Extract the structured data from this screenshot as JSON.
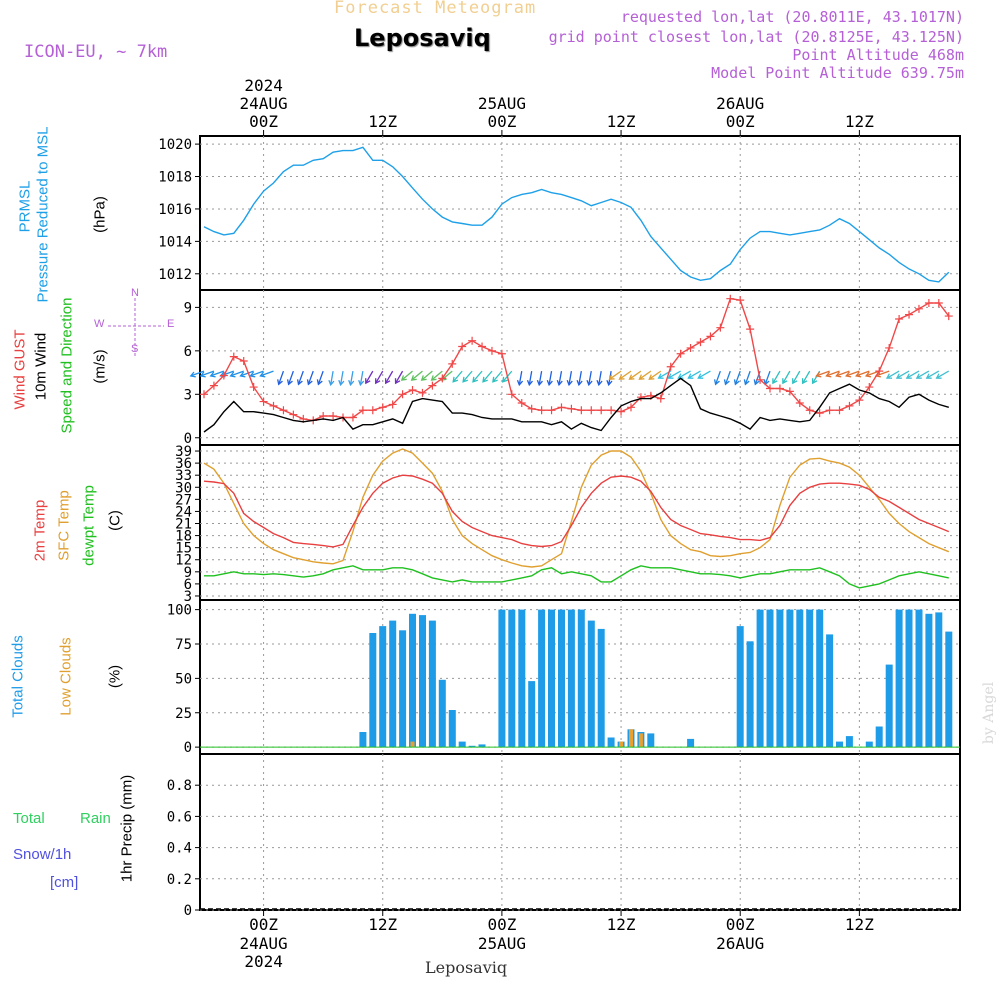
{
  "header": {
    "title": "Forecast Meteogram",
    "location": "Leposaviq",
    "model": "ICON-EU, ~ 7km",
    "meta": [
      "requested lon,lat (20.8011E, 43.1017N)",
      "grid point closest lon,lat (20.8125E, 43.125N)",
      "Point Altitude 468m",
      "Model Point Altitude 639.75m"
    ],
    "footer": "Leposaviq",
    "credit": "by Angel"
  },
  "colors": {
    "pressure": "#1ea0e8",
    "gust": "#f04848",
    "wind": "#000000",
    "temp2m": "#e84040",
    "sfc": "#e0a030",
    "dewpt": "#20c020",
    "clouds_total": "#1e9ce8",
    "clouds_low": "#e8a030",
    "rain": "#30d060",
    "snow": "#5050e0",
    "compass": "#b560d6"
  },
  "time_axis": {
    "top_year": "2024",
    "ticks": [
      {
        "h": 6,
        "top": "00Z",
        "date": "24AUG",
        "year": "2024"
      },
      {
        "h": 18,
        "top": "12Z"
      },
      {
        "h": 30,
        "top": "00Z",
        "date": "25AUG"
      },
      {
        "h": 42,
        "top": "12Z"
      },
      {
        "h": 54,
        "top": "00Z",
        "date": "26AUG"
      },
      {
        "h": 66,
        "top": "12Z"
      }
    ]
  },
  "panel_labels": {
    "pressure": [
      "PRMSL",
      "Pressure Reduced to MSL",
      "(hPa)"
    ],
    "wind": [
      "Wind GUST",
      "10m Wind",
      "Speed and Direction",
      "(m/s)"
    ],
    "compass": {
      "n": "N",
      "s": "S",
      "w": "W",
      "e": "E"
    },
    "temp": [
      "2m Temp",
      "SFC Temp",
      "dewpt Temp",
      "(C)"
    ],
    "clouds": [
      "Total Clouds",
      "Low Clouds",
      "(%)"
    ],
    "precip": [
      "Total",
      "Rain",
      "Snow/1h",
      "[cm]",
      "1hr Precip (mm)"
    ]
  },
  "chart_data": [
    {
      "type": "line",
      "title": "PRMSL Pressure Reduced to MSL",
      "ylabel": "(hPa)",
      "ylim": [
        1011,
        1020.5
      ],
      "yticks": [
        1012,
        1014,
        1016,
        1018,
        1020
      ],
      "x_hours": [
        0,
        1,
        2,
        3,
        4,
        5,
        6,
        7,
        8,
        9,
        10,
        11,
        12,
        13,
        14,
        15,
        16,
        17,
        18,
        19,
        20,
        21,
        22,
        23,
        24,
        25,
        26,
        27,
        28,
        29,
        30,
        31,
        32,
        33,
        34,
        35,
        36,
        37,
        38,
        39,
        40,
        41,
        42,
        43,
        44,
        45,
        46,
        47,
        48,
        49,
        50,
        51,
        52,
        53,
        54,
        55,
        56,
        57,
        58,
        59,
        60,
        61,
        62,
        63,
        64,
        65,
        66,
        67,
        68,
        69,
        70,
        71,
        72,
        73,
        74,
        75
      ],
      "series": [
        {
          "name": "PRMSL",
          "values": [
            1014.9,
            1014.6,
            1014.4,
            1014.5,
            1015.3,
            1016.3,
            1017.1,
            1017.6,
            1018.3,
            1018.7,
            1018.7,
            1019.0,
            1019.1,
            1019.5,
            1019.6,
            1019.6,
            1019.8,
            1019.0,
            1019.0,
            1018.6,
            1018.0,
            1017.3,
            1016.6,
            1016.0,
            1015.5,
            1015.2,
            1015.1,
            1015.0,
            1015.0,
            1015.5,
            1016.3,
            1016.7,
            1016.9,
            1017.0,
            1017.2,
            1017.0,
            1016.9,
            1016.7,
            1016.5,
            1016.2,
            1016.4,
            1016.6,
            1016.4,
            1016.1,
            1015.3,
            1014.3,
            1013.6,
            1012.9,
            1012.2,
            1011.8,
            1011.6,
            1011.7,
            1012.2,
            1012.6,
            1013.5,
            1014.2,
            1014.6,
            1014.6,
            1014.5,
            1014.4,
            1014.5,
            1014.6,
            1014.7,
            1015.0,
            1015.4,
            1015.1,
            1014.6,
            1014.1,
            1013.6,
            1013.2,
            1012.7,
            1012.3,
            1012.0,
            1011.6,
            1011.5,
            1012.1
          ]
        }
      ]
    },
    {
      "type": "line",
      "title": "Wind GUST / 10m Wind Speed and Direction",
      "ylabel": "(m/s)",
      "ylim": [
        -0.5,
        10.2
      ],
      "yticks": [
        0,
        3,
        6,
        9
      ],
      "x_hours": [
        0,
        1,
        2,
        3,
        4,
        5,
        6,
        7,
        8,
        9,
        10,
        11,
        12,
        13,
        14,
        15,
        16,
        17,
        18,
        19,
        20,
        21,
        22,
        23,
        24,
        25,
        26,
        27,
        28,
        29,
        30,
        31,
        32,
        33,
        34,
        35,
        36,
        37,
        38,
        39,
        40,
        41,
        42,
        43,
        44,
        45,
        46,
        47,
        48,
        49,
        50,
        51,
        52,
        53,
        54,
        55,
        56,
        57,
        58,
        59,
        60,
        61,
        62,
        63,
        64,
        65,
        66,
        67,
        68,
        69,
        70,
        71,
        72,
        73,
        74,
        75
      ],
      "series": [
        {
          "name": "Wind GUST",
          "values": [
            3.0,
            3.6,
            4.3,
            5.6,
            5.3,
            3.5,
            2.5,
            2.2,
            1.9,
            1.6,
            1.3,
            1.2,
            1.5,
            1.5,
            1.4,
            1.4,
            1.9,
            1.9,
            2.1,
            2.3,
            3.0,
            3.3,
            3.1,
            3.6,
            4.1,
            5.1,
            6.3,
            6.7,
            6.3,
            6.0,
            5.8,
            3.0,
            2.4,
            2.0,
            1.9,
            1.9,
            2.1,
            2.0,
            1.9,
            1.9,
            1.9,
            1.9,
            1.8,
            2.1,
            2.8,
            2.9,
            2.7,
            4.9,
            5.8,
            6.2,
            6.6,
            7.0,
            7.6,
            9.6,
            9.5,
            7.5,
            4.0,
            3.4,
            3.4,
            3.2,
            2.4,
            1.9,
            1.7,
            1.9,
            1.9,
            2.2,
            2.6,
            3.5,
            4.6,
            6.2,
            8.2,
            8.5,
            8.9,
            9.3,
            9.3,
            8.4
          ]
        },
        {
          "name": "10m Wind",
          "values": [
            0.4,
            0.9,
            1.8,
            2.5,
            1.8,
            1.8,
            1.7,
            1.6,
            1.4,
            1.2,
            1.1,
            1.2,
            1.3,
            1.2,
            1.4,
            0.6,
            0.9,
            0.9,
            1.1,
            1.3,
            1.0,
            2.5,
            2.7,
            2.6,
            2.5,
            1.7,
            1.7,
            1.6,
            1.4,
            1.3,
            1.3,
            1.3,
            1.1,
            1.1,
            1.1,
            0.9,
            1.1,
            0.6,
            1.0,
            0.7,
            0.5,
            1.4,
            2.2,
            2.5,
            2.7,
            2.7,
            3.1,
            3.6,
            4.1,
            3.6,
            2.0,
            1.7,
            1.5,
            1.3,
            1.0,
            0.6,
            1.4,
            1.2,
            1.3,
            1.2,
            1.1,
            1.2,
            2.1,
            3.1,
            3.4,
            3.7,
            3.3,
            3.1,
            2.7,
            2.5,
            2.1,
            2.8,
            3.0,
            2.6,
            2.3,
            2.1
          ]
        }
      ]
    },
    {
      "type": "line",
      "title": "2m Temp / SFC Temp / dewpt Temp",
      "ylabel": "(C)",
      "ylim": [
        2,
        40.5
      ],
      "yticks": [
        3,
        6,
        9,
        12,
        15,
        18,
        21,
        24,
        27,
        30,
        33,
        36,
        39
      ],
      "x_hours": [
        0,
        1,
        2,
        3,
        4,
        5,
        6,
        7,
        8,
        9,
        10,
        11,
        12,
        13,
        14,
        15,
        16,
        17,
        18,
        19,
        20,
        21,
        22,
        23,
        24,
        25,
        26,
        27,
        28,
        29,
        30,
        31,
        32,
        33,
        34,
        35,
        36,
        37,
        38,
        39,
        40,
        41,
        42,
        43,
        44,
        45,
        46,
        47,
        48,
        49,
        50,
        51,
        52,
        53,
        54,
        55,
        56,
        57,
        58,
        59,
        60,
        61,
        62,
        63,
        64,
        65,
        66,
        67,
        68,
        69,
        70,
        71,
        72,
        73,
        74,
        75
      ],
      "series": [
        {
          "name": "2m Temp",
          "values": [
            31.5,
            31.3,
            30.9,
            28.5,
            23.5,
            21.5,
            20.0,
            18.5,
            17.5,
            16.3,
            16.0,
            15.8,
            15.5,
            15.2,
            15.8,
            20.5,
            25.0,
            28.5,
            31.0,
            32.3,
            33.0,
            32.8,
            32.0,
            31.0,
            28.5,
            24.0,
            21.5,
            20.0,
            19.0,
            18.0,
            17.5,
            17.0,
            16.0,
            15.5,
            15.3,
            15.5,
            16.5,
            20.5,
            25.0,
            28.5,
            31.0,
            32.5,
            32.8,
            32.5,
            31.5,
            29.0,
            25.0,
            22.0,
            20.5,
            19.5,
            18.5,
            18.2,
            17.8,
            17.5,
            17.0,
            17.0,
            16.8,
            17.5,
            20.5,
            25.5,
            28.5,
            30.0,
            30.8,
            31.0,
            31.0,
            30.8,
            30.5,
            29.5,
            27.5,
            26.5,
            25.0,
            23.5,
            22.0,
            21.0,
            20.0,
            19.0
          ]
        },
        {
          "name": "SFC Temp",
          "values": [
            36.0,
            34.5,
            31.0,
            26.0,
            21.0,
            18.0,
            16.0,
            14.5,
            13.5,
            12.5,
            12.0,
            11.5,
            11.2,
            11.0,
            11.8,
            19.0,
            27.5,
            33.0,
            36.5,
            38.5,
            39.5,
            38.5,
            36.0,
            33.5,
            29.0,
            22.0,
            18.0,
            16.0,
            14.5,
            13.0,
            12.0,
            11.2,
            10.5,
            10.2,
            10.5,
            12.0,
            13.5,
            21.5,
            30.0,
            35.5,
            38.0,
            39.0,
            39.0,
            37.5,
            34.0,
            28.5,
            22.0,
            18.0,
            16.0,
            14.5,
            14.0,
            13.0,
            12.8,
            13.0,
            13.5,
            13.8,
            15.0,
            17.0,
            25.5,
            32.5,
            35.5,
            37.0,
            37.2,
            36.5,
            36.0,
            35.0,
            33.0,
            30.0,
            27.0,
            23.5,
            21.0,
            19.0,
            17.5,
            16.0,
            15.0,
            14.0
          ]
        },
        {
          "name": "dewpt Temp",
          "values": [
            8.0,
            8.0,
            8.5,
            9.0,
            8.5,
            8.5,
            8.3,
            8.5,
            8.3,
            8.0,
            7.7,
            8.0,
            8.5,
            9.5,
            10.0,
            10.5,
            9.5,
            9.5,
            9.5,
            10.0,
            10.0,
            9.5,
            8.5,
            7.5,
            7.0,
            6.5,
            7.0,
            6.5,
            6.5,
            6.5,
            6.5,
            7.0,
            7.5,
            8.0,
            9.5,
            10.0,
            8.5,
            9.0,
            8.5,
            8.0,
            6.5,
            6.5,
            8.0,
            9.5,
            10.5,
            10.0,
            10.0,
            10.0,
            9.5,
            9.0,
            8.5,
            8.5,
            8.3,
            8.0,
            7.5,
            8.0,
            8.5,
            8.5,
            9.0,
            9.5,
            9.5,
            9.5,
            10.0,
            9.0,
            8.0,
            6.0,
            5.0,
            5.5,
            6.0,
            7.0,
            8.0,
            8.5,
            9.0,
            8.5,
            8.0,
            7.5
          ]
        }
      ]
    },
    {
      "type": "bar",
      "title": "Total Clouds / Low Clouds",
      "ylabel": "(%)",
      "ylim": [
        -5,
        107
      ],
      "yticks": [
        0,
        25,
        50,
        75,
        100
      ],
      "x_hours": [
        0,
        1,
        2,
        3,
        4,
        5,
        6,
        7,
        8,
        9,
        10,
        11,
        12,
        13,
        14,
        15,
        16,
        17,
        18,
        19,
        20,
        21,
        22,
        23,
        24,
        25,
        26,
        27,
        28,
        29,
        30,
        31,
        32,
        33,
        34,
        35,
        36,
        37,
        38,
        39,
        40,
        41,
        42,
        43,
        44,
        45,
        46,
        47,
        48,
        49,
        50,
        51,
        52,
        53,
        54,
        55,
        56,
        57,
        58,
        59,
        60,
        61,
        62,
        63,
        64,
        65,
        66,
        67,
        68,
        69,
        70,
        71,
        72,
        73,
        74,
        75
      ],
      "series": [
        {
          "name": "Total Clouds",
          "values": [
            0,
            0,
            0,
            0,
            0,
            0,
            0,
            0,
            0,
            0,
            0,
            0,
            0,
            0,
            0,
            0,
            11,
            83,
            88,
            92,
            85,
            97,
            96,
            92,
            49,
            27,
            4,
            1,
            2,
            0,
            100,
            100,
            100,
            48,
            100,
            100,
            100,
            100,
            100,
            92,
            86,
            7,
            4,
            13,
            11,
            10,
            0,
            0,
            0,
            6,
            0,
            0,
            0,
            0,
            88,
            77,
            100,
            100,
            100,
            100,
            100,
            100,
            100,
            82,
            4,
            8,
            0,
            4,
            15,
            60,
            100,
            100,
            100,
            97,
            98,
            84
          ]
        },
        {
          "name": "Low Clouds",
          "values": [
            0,
            0,
            0,
            0,
            0,
            0,
            0,
            0,
            0,
            0,
            0,
            0,
            0,
            0,
            0,
            0,
            0,
            0,
            0,
            0,
            0,
            4,
            0,
            0,
            0,
            0,
            0,
            0,
            0,
            0,
            0,
            0,
            0,
            0,
            0,
            0,
            0,
            0,
            0,
            0,
            0,
            0,
            4,
            13,
            10,
            0,
            0,
            0,
            0,
            0,
            0,
            0,
            0,
            0,
            0,
            0,
            0,
            0,
            0,
            0,
            0,
            0,
            0,
            0,
            0,
            0,
            0,
            0,
            0,
            0,
            0,
            0,
            0,
            0,
            0,
            0
          ]
        }
      ]
    },
    {
      "type": "line",
      "title": "1hr Precip (mm)",
      "ylabel": "1hr Precip (mm)",
      "ylim": [
        0,
        1.0
      ],
      "yticks": [
        0,
        0.2,
        0.4,
        0.6,
        0.8
      ],
      "ytick_labels": [
        "0",
        "0.2",
        "0.4",
        "0.6",
        "0.8"
      ],
      "x_hours": [
        0,
        75
      ],
      "series": [
        {
          "name": "Total Rain",
          "values": [
            0,
            0
          ]
        },
        {
          "name": "Snow/1h",
          "values": [
            0,
            0
          ]
        }
      ]
    }
  ],
  "wind_vectors": [
    {
      "from": 0,
      "count": 8,
      "color": "#2090e8",
      "deg": 250
    },
    {
      "from": 8,
      "count": 5,
      "color": "#2060e0",
      "deg": 200
    },
    {
      "from": 13,
      "count": 4,
      "color": "#3aa0e8",
      "deg": 190
    },
    {
      "from": 17,
      "count": 4,
      "color": "#7030c0",
      "deg": 210
    },
    {
      "from": 21,
      "count": 5,
      "color": "#60c060",
      "deg": 230
    },
    {
      "from": 26,
      "count": 6,
      "color": "#30c0c0",
      "deg": 220
    },
    {
      "from": 32,
      "count": 10,
      "color": "#2060e0",
      "deg": 190
    },
    {
      "from": 42,
      "count": 5,
      "color": "#e0a030",
      "deg": 235
    },
    {
      "from": 47,
      "count": 5,
      "color": "#30c0e0",
      "deg": 240
    },
    {
      "from": 52,
      "count": 6,
      "color": "#2080e0",
      "deg": 200
    },
    {
      "from": 58,
      "count": 5,
      "color": "#30c0c0",
      "deg": 210
    },
    {
      "from": 63,
      "count": 7,
      "color": "#e07030",
      "deg": 250
    },
    {
      "from": 70,
      "count": 6,
      "color": "#40c0d0",
      "deg": 240
    }
  ]
}
